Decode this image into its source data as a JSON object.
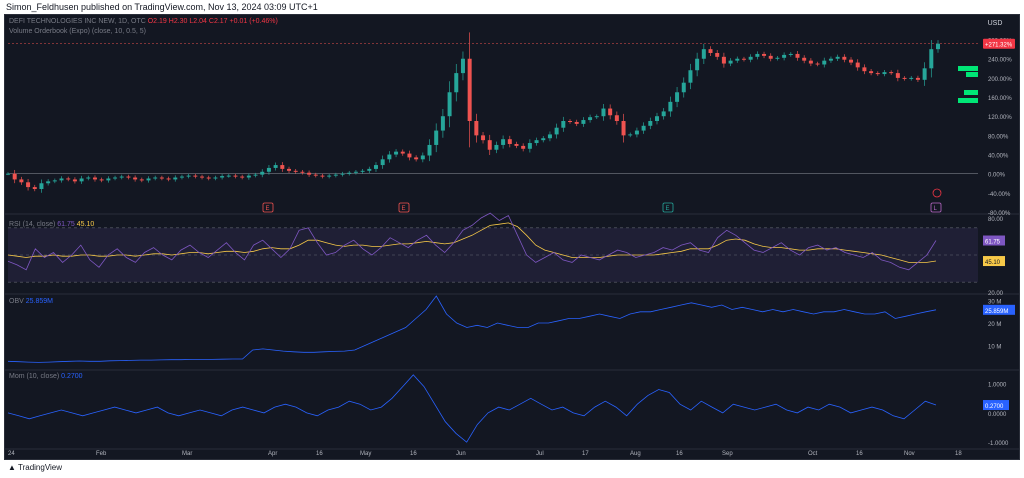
{
  "header": {
    "published": "Simon_Feldhusen published on TradingView.com, Nov 13, 2024 03:09 UTC+1"
  },
  "main_legend": {
    "symbol": "DEFI TECHNOLOGIES INC NEW, 1D, OTC",
    "o": "O2.19",
    "h": "H2.30",
    "l": "L2.04",
    "c": "C2.17",
    "chg": "+0.01 (+0.46%)",
    "indicator": "Volume Orderbook (Expo) (close, 10, 0.5, 5)"
  },
  "currency": "USD",
  "price_badge": "+271.32%",
  "price_axis": [
    "280.00%",
    "240.00%",
    "200.00%",
    "160.00%",
    "120.00%",
    "80.00%",
    "40.00%",
    "0.00%",
    "-40.00%",
    "-80.00%"
  ],
  "event_markers": [
    "E",
    "E",
    "E",
    "L"
  ],
  "rsi": {
    "legend": "RSI (14, close)",
    "value": "61.75",
    "ma": "45.10",
    "axis": [
      "80.00",
      "20.00"
    ],
    "badge_value": "61.75",
    "badge_ma": "45.10"
  },
  "obv": {
    "legend": "OBV",
    "value": "25.859M",
    "axis": [
      "30 M",
      "20 M",
      "10 M"
    ],
    "badge": "25.859M"
  },
  "mom": {
    "legend": "Mom (10, close)",
    "value": "0.2700",
    "axis": [
      "1.0000",
      "0.0000",
      "-1.0000"
    ],
    "badge": "0.2700"
  },
  "time_axis": [
    "24",
    "Feb",
    "Mar",
    "Apr",
    "16",
    "May",
    "16",
    "Jun",
    "Jul",
    "17",
    "Aug",
    "16",
    "Sep",
    "Oct",
    "16",
    "Nov",
    "18"
  ],
  "footer": {
    "brand": "TradingView"
  },
  "colors": {
    "up": "#26a69a",
    "down": "#ef5350",
    "line": "#2962ff",
    "rsi": "#7e57c2",
    "ma": "#f7c948",
    "bg": "#131722"
  },
  "chart_data": [
    {
      "type": "candlestick",
      "title": "DEFI TECHNOLOGIES INC NEW, 1D, OTC",
      "ylabel": "% change",
      "ylim": [
        -80,
        300
      ],
      "x_range": [
        "2024-01-01",
        "2024-11-13"
      ],
      "series": [
        {
          "values": [
            0,
            -12,
            -18,
            -28,
            -32,
            -20,
            -16,
            -14,
            -10,
            -12,
            -16,
            -10,
            -8,
            -12,
            -14,
            -10,
            -8,
            -6,
            -8,
            -12,
            -14,
            -10,
            -8,
            -10,
            -12,
            -8,
            -6,
            -4,
            -6,
            -8,
            -10,
            -8,
            -5,
            -4,
            -6,
            -8,
            -4,
            -2,
            4,
            12,
            18,
            10,
            6,
            4,
            2,
            -2,
            -4,
            -6,
            -4,
            -2,
            0,
            2,
            4,
            6,
            10,
            18,
            30,
            40,
            46,
            42,
            34,
            30,
            38,
            60,
            90,
            120,
            170,
            210,
            240,
            110,
            80,
            70,
            50,
            60,
            72,
            62,
            58,
            52,
            64,
            70,
            74,
            82,
            96,
            110,
            108,
            104,
            112,
            118,
            120,
            136,
            122,
            110,
            80,
            82,
            90,
            100,
            110,
            120,
            130,
            150,
            170,
            190,
            216,
            240,
            260,
            252,
            244,
            230,
            236,
            240,
            238,
            244,
            250,
            246,
            240,
            242,
            248,
            250,
            242,
            236,
            230,
            228,
            236,
            240,
            244,
            238,
            232,
            222,
            214,
            210,
            208,
            212,
            210,
            200,
            198,
            200,
            196,
            220,
            260,
            271.32
          ]
        }
      ]
    },
    {
      "type": "line",
      "title": "RSI (14, close)",
      "ylim": [
        20,
        80
      ],
      "series": [
        {
          "name": "RSI",
          "values": [
            45,
            42,
            38,
            55,
            48,
            52,
            44,
            50,
            58,
            46,
            40,
            50,
            55,
            48,
            44,
            52,
            56,
            50,
            46,
            54,
            58,
            52,
            48,
            54,
            60,
            52,
            46,
            58,
            62,
            55,
            48,
            55,
            70,
            72,
            60,
            50,
            52,
            58,
            62,
            55,
            50,
            56,
            64,
            60,
            56,
            62,
            66,
            58,
            52,
            60,
            70,
            74,
            80,
            84,
            78,
            82,
            66,
            50,
            44,
            48,
            52,
            46,
            44,
            50,
            48,
            46,
            50,
            54,
            52,
            48,
            50,
            52,
            56,
            54,
            58,
            60,
            54,
            52,
            64,
            70,
            66,
            60,
            54,
            52,
            56,
            60,
            54,
            50,
            56,
            58,
            54,
            56,
            52,
            50,
            48,
            52,
            46,
            44,
            40,
            38,
            44,
            50,
            61.75
          ]
        },
        {
          "name": "MA",
          "values": [
            50,
            49,
            48,
            49,
            49,
            50,
            49,
            49,
            50,
            50,
            49,
            49,
            50,
            50,
            49,
            50,
            51,
            51,
            50,
            51,
            52,
            52,
            51,
            52,
            53,
            53,
            52,
            53,
            55,
            56,
            55,
            55,
            58,
            62,
            62,
            60,
            58,
            57,
            58,
            58,
            57,
            57,
            58,
            59,
            59,
            60,
            61,
            60,
            59,
            60,
            63,
            66,
            70,
            74,
            75,
            76,
            73,
            66,
            58,
            54,
            52,
            50,
            48,
            48,
            48,
            48,
            49,
            50,
            50,
            50,
            50,
            50,
            51,
            52,
            53,
            55,
            55,
            55,
            58,
            62,
            63,
            62,
            59,
            57,
            56,
            56,
            55,
            54,
            54,
            55,
            55,
            55,
            54,
            53,
            52,
            51,
            50,
            48,
            46,
            44,
            44,
            44,
            45.1
          ]
        }
      ]
    },
    {
      "type": "line",
      "title": "OBV",
      "ylim": [
        0,
        32
      ],
      "series": [
        {
          "name": "OBV",
          "values": [
            3,
            2.8,
            2.6,
            2.5,
            2.6,
            2.8,
            3,
            3.1,
            3,
            3,
            3.2,
            3.3,
            3.4,
            3.5,
            3.5,
            3.6,
            3.7,
            3.7,
            3.8,
            3.8,
            3.8,
            3.9,
            4,
            4,
            8,
            8.5,
            8,
            7.5,
            7.2,
            7,
            7,
            7.2,
            7.4,
            7.5,
            8,
            10,
            12,
            14,
            16,
            18,
            22,
            26,
            32,
            24,
            20,
            18,
            19,
            18,
            20,
            19,
            18,
            18,
            20,
            20,
            21,
            22,
            22,
            23,
            24,
            23,
            22,
            24,
            25,
            25,
            26,
            27,
            28,
            29,
            28,
            27,
            28,
            26,
            27,
            26,
            25,
            26,
            25,
            26,
            25,
            24,
            25,
            25,
            26,
            25,
            24,
            24,
            25,
            22,
            23,
            24,
            25,
            25.859
          ]
        }
      ]
    },
    {
      "type": "line",
      "title": "Mom (10, close)",
      "ylim": [
        -1.2,
        1.4
      ],
      "series": [
        {
          "name": "Mom",
          "values": [
            0,
            -0.1,
            -0.2,
            -0.1,
            0,
            0.1,
            0,
            -0.1,
            0,
            0.1,
            0.2,
            0.1,
            0,
            0.1,
            0.2,
            0,
            -0.1,
            0,
            0.1,
            0,
            -0.1,
            0.1,
            0.2,
            0.1,
            0,
            0.2,
            0.3,
            0.2,
            0,
            -0.1,
            0.1,
            0.2,
            0.4,
            0.3,
            0.1,
            0.2,
            0.5,
            0.9,
            1.3,
            0.9,
            0.3,
            -0.3,
            -0.7,
            -1.0,
            -0.4,
            0,
            0.2,
            0.1,
            0.3,
            0.5,
            0.3,
            0.1,
            0.2,
            0,
            -0.1,
            0.2,
            0.4,
            0.2,
            -0.1,
            0.3,
            0.6,
            0.8,
            0.7,
            0.3,
            0.1,
            0.4,
            0.2,
            0,
            0.3,
            0.2,
            0.1,
            0.2,
            0.3,
            0.1,
            0,
            0.2,
            0.1,
            0.3,
            0.2,
            0,
            0.1,
            0.2,
            0.1,
            -0.1,
            -0.2,
            0.1,
            0.4,
            0.27
          ]
        }
      ]
    }
  ]
}
